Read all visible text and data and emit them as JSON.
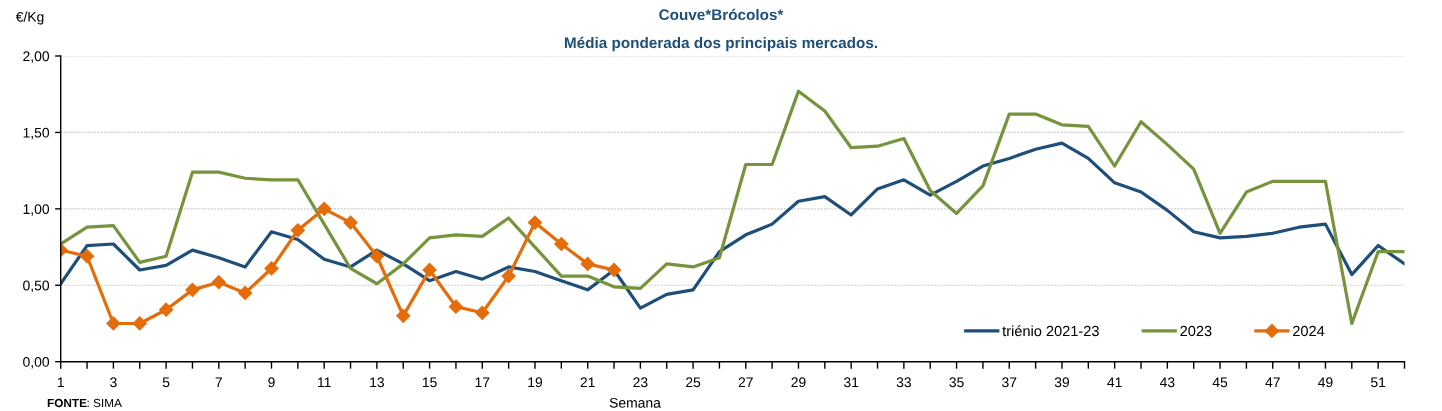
{
  "chart_data": {
    "type": "line",
    "title": "Couve*Brócolos*",
    "subtitle": "Média ponderada dos principais mercados.",
    "ylabel": "€/Kg",
    "xlabel": "Semana",
    "annotations": [
      "FONTE: SIMA"
    ],
    "categories": [
      "1",
      null,
      "3",
      null,
      "5",
      null,
      "7",
      null,
      "9",
      null,
      "11",
      null,
      "13",
      null,
      "15",
      null,
      "17",
      null,
      "19",
      null,
      "21",
      null,
      "23",
      null,
      "25",
      null,
      "27",
      null,
      "29",
      null,
      "31",
      null,
      "33",
      null,
      "35",
      null,
      "37",
      null,
      "39",
      null,
      "41",
      null,
      "43",
      null,
      "45",
      null,
      "47",
      null,
      "49",
      null,
      "51",
      null
    ],
    "series": [
      {
        "name": "triénio 2021-23",
        "color": "#1f4e79",
        "values": [
          0.51,
          0.76,
          0.77,
          0.6,
          0.63,
          0.73,
          0.68,
          0.62,
          0.85,
          0.8,
          0.67,
          0.62,
          0.73,
          0.64,
          0.53,
          0.59,
          0.54,
          0.62,
          0.59,
          0.53,
          0.47,
          0.6,
          0.35,
          0.44,
          0.47,
          0.72,
          0.83,
          0.9,
          1.05,
          1.08,
          0.96,
          1.13,
          1.19,
          1.09,
          1.18,
          1.28,
          1.33,
          1.39,
          1.43,
          1.33,
          1.17,
          1.11,
          0.99,
          0.85,
          0.81,
          0.82,
          0.84,
          0.88,
          0.9,
          0.57,
          0.76,
          0.64
        ]
      },
      {
        "name": "2023",
        "color": "#77933c",
        "values": [
          0.77,
          0.88,
          0.89,
          0.65,
          0.69,
          1.24,
          1.24,
          1.2,
          1.19,
          1.19,
          0.9,
          0.61,
          0.51,
          0.64,
          0.81,
          0.83,
          0.82,
          0.94,
          0.75,
          0.56,
          0.56,
          0.49,
          0.48,
          0.64,
          0.62,
          0.68,
          1.29,
          1.29,
          1.77,
          1.64,
          1.4,
          1.41,
          1.46,
          1.12,
          0.97,
          1.15,
          1.62,
          1.62,
          1.55,
          1.54,
          1.28,
          1.57,
          1.42,
          1.26,
          0.84,
          1.11,
          1.18,
          1.18,
          1.18,
          0.25,
          0.72,
          0.72
        ]
      },
      {
        "name": "2024",
        "color": "#e46c0a",
        "marker": "diamond",
        "values": [
          0.73,
          0.69,
          0.25,
          0.25,
          0.34,
          0.47,
          0.52,
          0.45,
          0.61,
          0.86,
          1.0,
          0.91,
          0.69,
          0.3,
          0.6,
          0.36,
          0.32,
          0.56,
          0.91,
          0.77,
          0.64,
          0.6,
          null,
          null,
          null,
          null,
          null,
          null,
          null,
          null,
          null,
          null,
          null,
          null,
          null,
          null,
          null,
          null,
          null,
          null,
          null,
          null,
          null,
          null,
          null,
          null,
          null,
          null,
          null,
          null,
          null,
          null
        ]
      }
    ],
    "ylim": [
      0,
      2
    ],
    "yticks": [
      {
        "value": 0,
        "label": "0,00"
      },
      {
        "value": 0.5,
        "label": "0,50"
      },
      {
        "value": 1,
        "label": "1,00"
      },
      {
        "value": 1.5,
        "label": "1,50"
      },
      {
        "value": 2,
        "label": "2,00"
      }
    ],
    "grid": "y",
    "legend": "bottom right",
    "line_style": "solid"
  }
}
